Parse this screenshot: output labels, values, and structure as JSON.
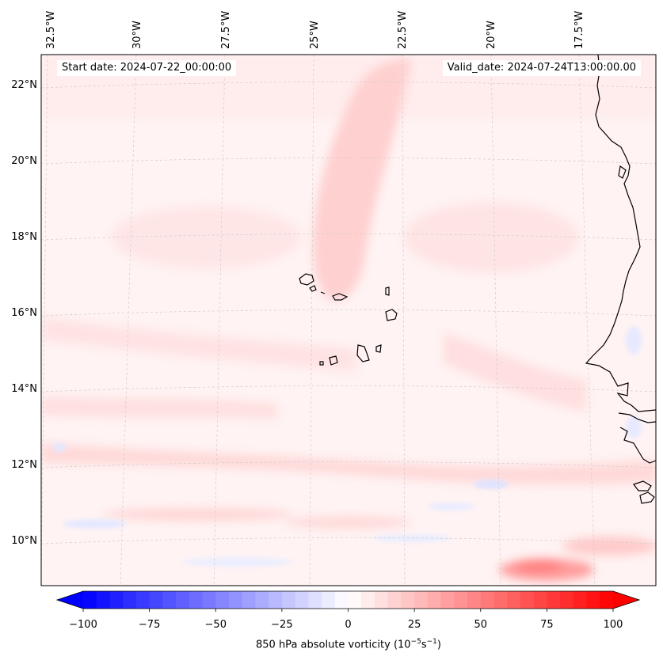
{
  "map": {
    "start_date": "Start date: 2024-07-22_00:00:00",
    "valid_date": "Valid_date: 2024-07-24T13:00:00.00",
    "lon_labels": [
      "32.5°W",
      "30°W",
      "27.5°W",
      "25°W",
      "22.5°W",
      "20°W",
      "17.5°W"
    ],
    "lat_labels": [
      "22°N",
      "20°N",
      "18°N",
      "16°N",
      "14°N",
      "12°N",
      "10°N"
    ],
    "field": "850 hPa absolute vorticity",
    "colormap": "bwr",
    "gridlines": true,
    "coastlines": true
  },
  "colorbar": {
    "label_text": "850 hPa absolute vorticity (10",
    "label_exp1": "−5",
    "label_mid": "s",
    "label_exp2": "−1",
    "label_close": ")",
    "ticks": [
      "−100",
      "−75",
      "−50",
      "−25",
      "0",
      "25",
      "50",
      "75",
      "100"
    ],
    "min": -100,
    "max": 100,
    "extend": "both",
    "colors": {
      "negative": "#0000ff",
      "zero": "#ffffff",
      "positive": "#ff0000"
    }
  }
}
